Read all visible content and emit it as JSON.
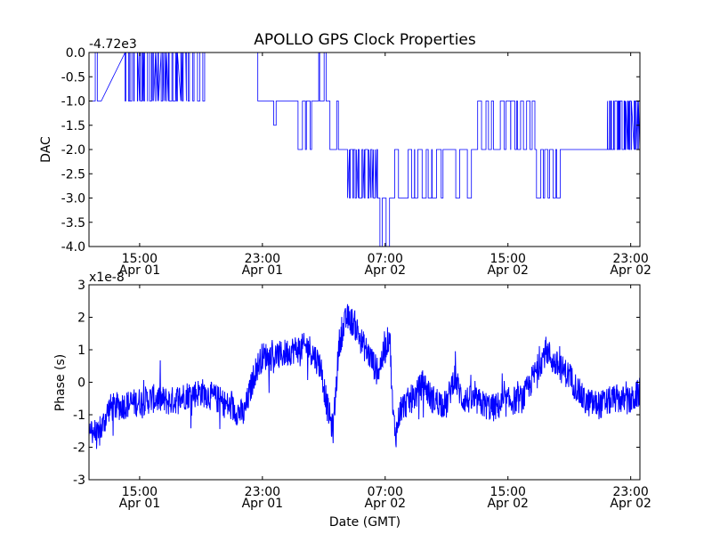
{
  "chart_data": [
    {
      "type": "line",
      "title": "APOLLO GPS Clock Properties",
      "xlabel": "",
      "ylabel": "DAC",
      "offset_text": "-4.72e3",
      "ylim": [
        -4.0,
        0.0
      ],
      "yticks": [
        "0.0",
        "-0.5",
        "-1.0",
        "-1.5",
        "-2.0",
        "-2.5",
        "-3.0",
        "-3.5",
        "-4.0"
      ],
      "ytick_values": [
        0.0,
        -0.5,
        -1.0,
        -1.5,
        -2.0,
        -2.5,
        -3.0,
        -3.5,
        -4.0
      ],
      "xlim_hours": [
        11.7,
        47.6
      ],
      "xticks": [
        {
          "hour": 15,
          "time": "15:00",
          "date": "Apr 01"
        },
        {
          "hour": 23,
          "time": "23:00",
          "date": "Apr 01"
        },
        {
          "hour": 31,
          "time": "07:00",
          "date": "Apr 02"
        },
        {
          "hour": 39,
          "time": "15:00",
          "date": "Apr 02"
        },
        {
          "hour": 47,
          "time": "23:00",
          "date": "Apr 02"
        }
      ],
      "color": "#0000ff",
      "segments": [
        {
          "start_hour": 11.7,
          "end_hour": 12.5,
          "level": -1.0,
          "toggle_to": 0.0,
          "toggles": 1
        },
        {
          "start_hour": 12.5,
          "end_hour": 14.1,
          "level": -1.0,
          "toggle_to": 0.0,
          "toggles": 0
        },
        {
          "start_hour": 14.1,
          "end_hour": 18.0,
          "level": 0.0,
          "toggle_to": -1.0,
          "toggles": 22
        },
        {
          "start_hour": 18.0,
          "end_hour": 19.3,
          "level": 0.0,
          "toggle_to": -1.0,
          "toggles": 4
        },
        {
          "start_hour": 19.3,
          "end_hour": 22.7,
          "level": 0.0,
          "toggle_to": -1.0,
          "toggles": 0
        },
        {
          "start_hour": 22.7,
          "end_hour": 25.3,
          "level": -1.0,
          "toggle_to": -1.5,
          "toggles": 1
        },
        {
          "start_hour": 25.3,
          "end_hour": 26.4,
          "level": -1.0,
          "toggle_to": -2.0,
          "toggles": 3
        },
        {
          "start_hour": 26.4,
          "end_hour": 27.4,
          "level": -1.0,
          "toggle_to": 0.0,
          "toggles": 2
        },
        {
          "start_hour": 27.4,
          "end_hour": 28.5,
          "level": -2.0,
          "toggle_to": -1.0,
          "toggles": 1
        },
        {
          "start_hour": 28.5,
          "end_hour": 30.5,
          "level": -2.0,
          "toggle_to": -3.0,
          "toggles": 10
        },
        {
          "start_hour": 30.5,
          "end_hour": 31.3,
          "level": -3.0,
          "toggle_to": -4.0,
          "toggles": 2
        },
        {
          "start_hour": 31.3,
          "end_hour": 32.5,
          "level": -3.0,
          "toggle_to": -2.0,
          "toggles": 1
        },
        {
          "start_hour": 32.5,
          "end_hour": 34.5,
          "level": -2.0,
          "toggle_to": -3.0,
          "toggles": 5
        },
        {
          "start_hour": 34.5,
          "end_hour": 37.0,
          "level": -2.0,
          "toggle_to": -3.0,
          "toggles": 3
        },
        {
          "start_hour": 37.0,
          "end_hour": 38.8,
          "level": -2.0,
          "toggle_to": -1.0,
          "toggles": 4
        },
        {
          "start_hour": 38.8,
          "end_hour": 40.8,
          "level": -2.0,
          "toggle_to": -1.0,
          "toggles": 6
        },
        {
          "start_hour": 40.8,
          "end_hour": 42.5,
          "level": -2.0,
          "toggle_to": -3.0,
          "toggles": 5
        },
        {
          "start_hour": 42.5,
          "end_hour": 45.5,
          "level": -2.0,
          "toggle_to": -2.0,
          "toggles": 0
        },
        {
          "start_hour": 45.5,
          "end_hour": 47.6,
          "level": -2.0,
          "toggle_to": -1.0,
          "toggles": 16
        }
      ]
    },
    {
      "type": "line",
      "title": "",
      "xlabel": "Date (GMT)",
      "ylabel": "Phase (s)",
      "offset_text": "x1e-8",
      "ylim": [
        -3,
        3
      ],
      "yticks": [
        "3",
        "2",
        "1",
        "0",
        "-1",
        "-2",
        "-3"
      ],
      "ytick_values": [
        3,
        2,
        1,
        0,
        -1,
        -2,
        -3
      ],
      "xlim_hours": [
        11.7,
        47.6
      ],
      "xticks": [
        {
          "hour": 15,
          "time": "15:00",
          "date": "Apr 01"
        },
        {
          "hour": 23,
          "time": "23:00",
          "date": "Apr 01"
        },
        {
          "hour": 31,
          "time": "07:00",
          "date": "Apr 02"
        },
        {
          "hour": 39,
          "time": "15:00",
          "date": "Apr 02"
        },
        {
          "hour": 47,
          "time": "23:00",
          "date": "Apr 02"
        }
      ],
      "color": "#0000ff",
      "trend": [
        [
          11.7,
          -1.3
        ],
        [
          12.3,
          -1.7
        ],
        [
          13.0,
          -0.8
        ],
        [
          14.0,
          -0.7
        ],
        [
          15.0,
          -0.6
        ],
        [
          16.0,
          -0.5
        ],
        [
          17.0,
          -0.6
        ],
        [
          18.0,
          -0.4
        ],
        [
          19.0,
          -0.3
        ],
        [
          20.0,
          -0.5
        ],
        [
          21.0,
          -0.8
        ],
        [
          21.8,
          -1.0
        ],
        [
          22.5,
          0.3
        ],
        [
          23.0,
          0.8
        ],
        [
          24.0,
          0.8
        ],
        [
          25.0,
          1.0
        ],
        [
          26.0,
          1.1
        ],
        [
          26.8,
          0.5
        ],
        [
          27.2,
          -0.7
        ],
        [
          27.6,
          -1.5
        ],
        [
          28.0,
          1.2
        ],
        [
          28.5,
          2.0
        ],
        [
          29.0,
          1.8
        ],
        [
          29.5,
          1.2
        ],
        [
          30.0,
          0.8
        ],
        [
          30.5,
          0.3
        ],
        [
          31.0,
          1.0
        ],
        [
          31.3,
          1.5
        ],
        [
          31.5,
          -1.0
        ],
        [
          31.7,
          -1.6
        ],
        [
          32.0,
          -0.8
        ],
        [
          33.0,
          -0.4
        ],
        [
          33.5,
          0.0
        ],
        [
          34.0,
          -0.5
        ],
        [
          35.0,
          -0.7
        ],
        [
          35.5,
          0.2
        ],
        [
          36.0,
          -0.5
        ],
        [
          37.0,
          -0.6
        ],
        [
          38.0,
          -0.8
        ],
        [
          39.0,
          -0.6
        ],
        [
          40.0,
          -0.5
        ],
        [
          41.0,
          0.5
        ],
        [
          41.5,
          1.0
        ],
        [
          42.0,
          0.6
        ],
        [
          43.0,
          0.2
        ],
        [
          43.5,
          -0.2
        ],
        [
          44.0,
          -0.6
        ],
        [
          45.0,
          -0.7
        ],
        [
          46.0,
          -0.5
        ],
        [
          47.0,
          -0.6
        ],
        [
          47.6,
          -0.3
        ]
      ]
    }
  ]
}
